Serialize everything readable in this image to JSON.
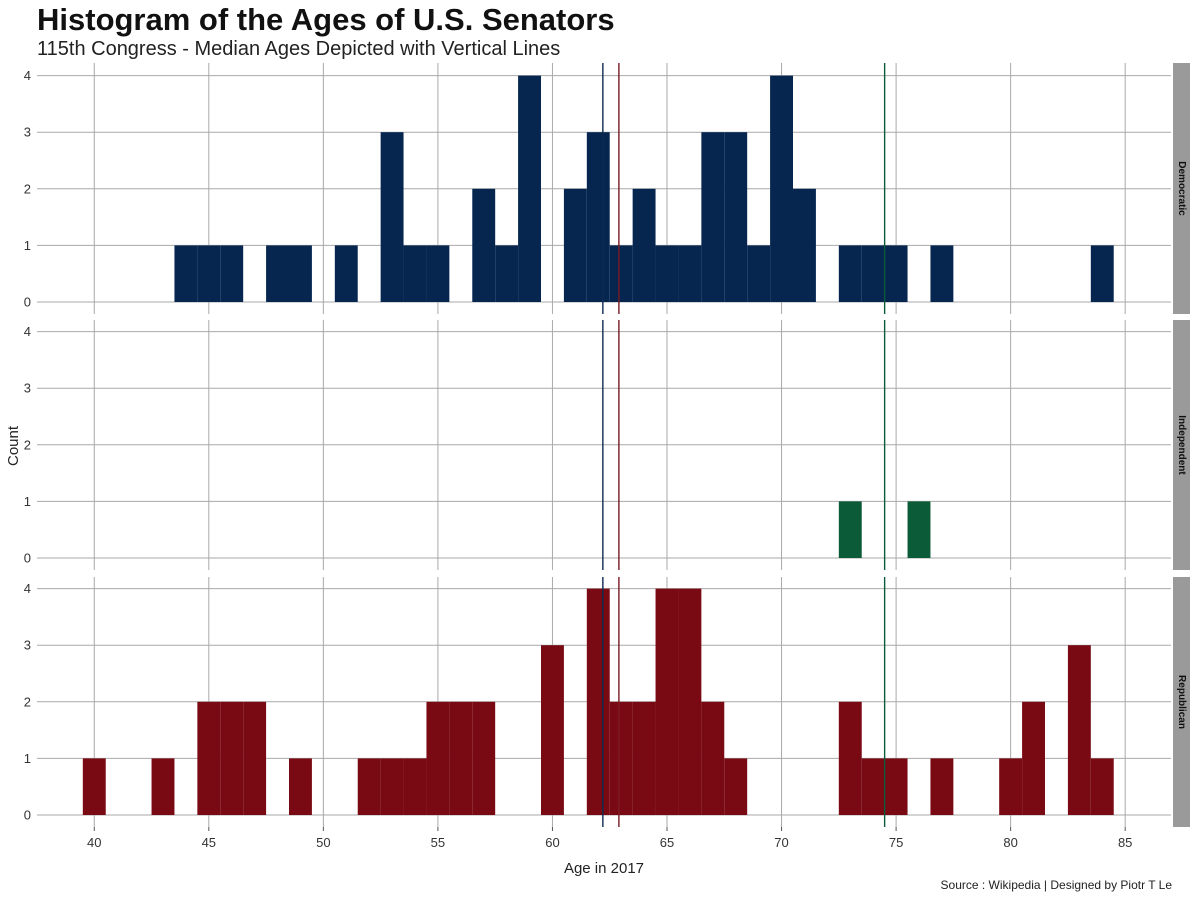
{
  "title": "Histogram of the Ages of U.S. Senators",
  "subtitle": "115th Congress - Median Ages Depicted with Vertical Lines",
  "caption": "Source : Wikipedia | Designed by Piotr T Le",
  "chart_data": {
    "type": "bar",
    "xlabel": "Age in 2017",
    "ylabel": "Count",
    "xlim": [
      37.5,
      87
    ],
    "ylim": [
      0,
      4.2
    ],
    "x_ticks": [
      40,
      45,
      50,
      55,
      60,
      65,
      70,
      75,
      80,
      85
    ],
    "y_ticks": [
      0,
      1,
      2,
      3,
      4
    ],
    "grid": true,
    "facet_labels": [
      "Democratic",
      "Independent",
      "Republican"
    ],
    "median_lines": [
      {
        "value": 62.2,
        "color": "#0d2a52"
      },
      {
        "value": 62.9,
        "color": "#7a1b24"
      },
      {
        "value": 74.5,
        "color": "#0b5a3b"
      }
    ],
    "series": [
      {
        "name": "Democratic",
        "color": "#062650",
        "bins": [
          [
            44,
            1
          ],
          [
            45,
            1
          ],
          [
            46,
            1
          ],
          [
            48,
            1
          ],
          [
            49,
            1
          ],
          [
            51,
            1
          ],
          [
            53,
            3
          ],
          [
            54,
            1
          ],
          [
            55,
            1
          ],
          [
            57,
            2
          ],
          [
            58,
            1
          ],
          [
            59,
            4
          ],
          [
            61,
            2
          ],
          [
            62,
            3
          ],
          [
            63,
            1
          ],
          [
            64,
            2
          ],
          [
            65,
            1
          ],
          [
            66,
            1
          ],
          [
            67,
            3
          ],
          [
            68,
            3
          ],
          [
            69,
            1
          ],
          [
            70,
            4
          ],
          [
            71,
            2
          ],
          [
            73,
            1
          ],
          [
            74,
            1
          ],
          [
            75,
            1
          ],
          [
            77,
            1
          ],
          [
            84,
            1
          ]
        ]
      },
      {
        "name": "Independent",
        "color": "#0b5a38",
        "bins": [
          [
            73,
            1
          ],
          [
            76,
            1
          ]
        ]
      },
      {
        "name": "Republican",
        "color": "#790a14",
        "bins": [
          [
            40,
            1
          ],
          [
            43,
            1
          ],
          [
            45,
            2
          ],
          [
            46,
            2
          ],
          [
            47,
            2
          ],
          [
            49,
            1
          ],
          [
            52,
            1
          ],
          [
            53,
            1
          ],
          [
            54,
            1
          ],
          [
            55,
            2
          ],
          [
            56,
            2
          ],
          [
            57,
            2
          ],
          [
            60,
            3
          ],
          [
            62,
            4
          ],
          [
            63,
            2
          ],
          [
            64,
            2
          ],
          [
            65,
            4
          ],
          [
            66,
            4
          ],
          [
            67,
            2
          ],
          [
            68,
            1
          ],
          [
            73,
            2
          ],
          [
            74,
            1
          ],
          [
            75,
            1
          ],
          [
            77,
            1
          ],
          [
            80,
            1
          ],
          [
            81,
            2
          ],
          [
            83,
            3
          ],
          [
            84,
            1
          ]
        ]
      }
    ]
  }
}
